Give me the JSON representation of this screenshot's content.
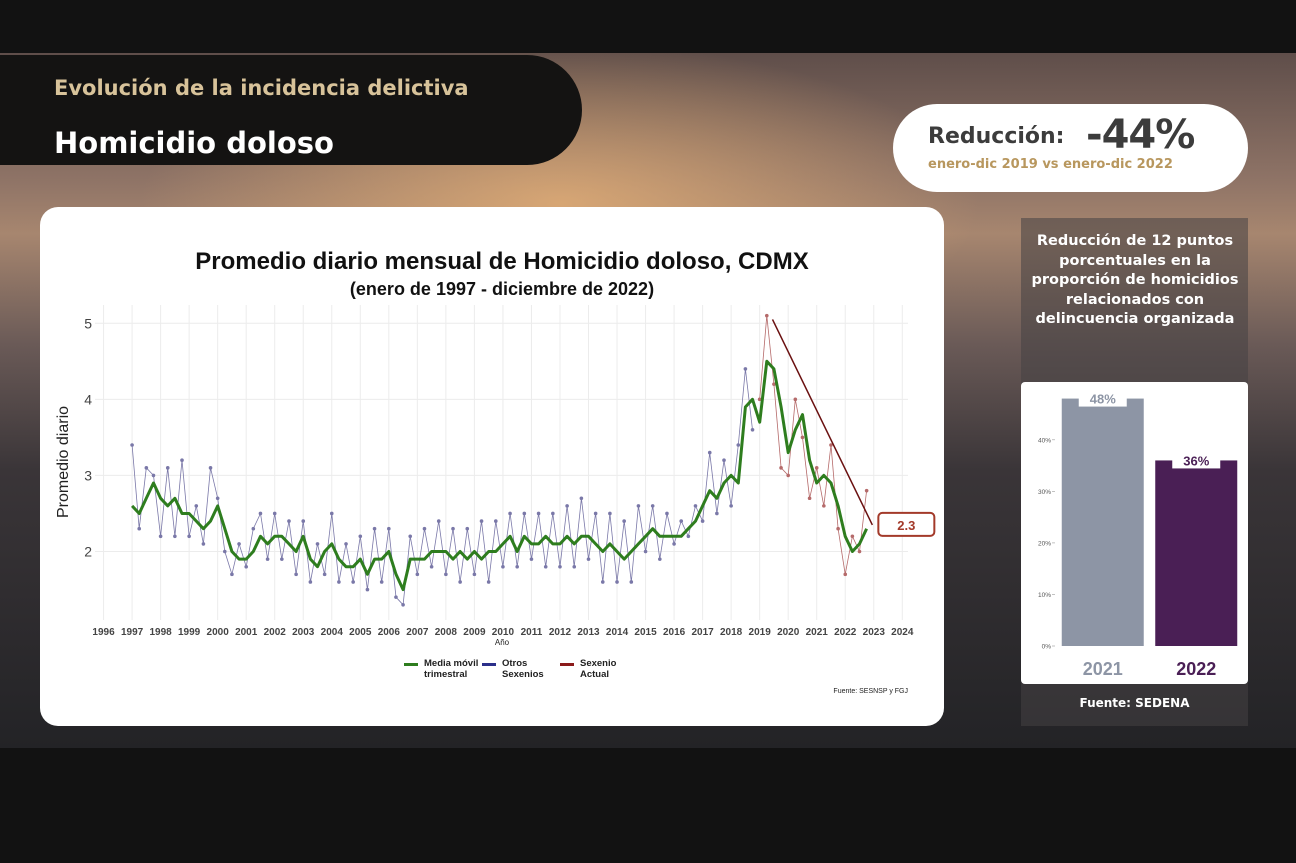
{
  "header": {
    "kicker": "Evolución de la incidencia delictiva",
    "title": "Homicidio doloso"
  },
  "reduction": {
    "label": "Reducción:",
    "value": "-44%",
    "period": "enero-dic 2019 vs enero-dic 2022"
  },
  "side_note": "Reducción de 12 puntos porcentuales en la proporción de homicidios relacionados con delincuencia organizada",
  "chart_data": [
    {
      "type": "line",
      "title": "Promedio diario mensual de Homicidio doloso, CDMX",
      "subtitle": "(enero de 1997 - diciembre de 2022)",
      "y_label": "Promedio diario",
      "x_label": "Año",
      "source": "Fuente: SESNSP y FGJ",
      "annotation": "2.3",
      "xlim": [
        1995.7,
        2024.2
      ],
      "xticks": [
        1996,
        1997,
        1998,
        1999,
        2000,
        2001,
        2002,
        2003,
        2004,
        2005,
        2006,
        2007,
        2008,
        2009,
        2010,
        2011,
        2012,
        2013,
        2014,
        2015,
        2016,
        2017,
        2018,
        2019,
        2020,
        2021,
        2022,
        2023,
        2024
      ],
      "ylim": [
        1.1,
        5.24
      ],
      "yticks": [
        2,
        3,
        4,
        5
      ],
      "grid": true,
      "x": [
        1997,
        1997.25,
        1997.5,
        1997.75,
        1998,
        1998.25,
        1998.5,
        1998.75,
        1999,
        1999.25,
        1999.5,
        1999.75,
        2000,
        2000.25,
        2000.5,
        2000.75,
        2001,
        2001.25,
        2001.5,
        2001.75,
        2002,
        2002.25,
        2002.5,
        2002.75,
        2003,
        2003.25,
        2003.5,
        2003.75,
        2004,
        2004.25,
        2004.5,
        2004.75,
        2005,
        2005.25,
        2005.5,
        2005.75,
        2006,
        2006.25,
        2006.5,
        2006.75,
        2007,
        2007.25,
        2007.5,
        2007.75,
        2008,
        2008.25,
        2008.5,
        2008.75,
        2009,
        2009.25,
        2009.5,
        2009.75,
        2010,
        2010.25,
        2010.5,
        2010.75,
        2011,
        2011.25,
        2011.5,
        2011.75,
        2012,
        2012.25,
        2012.5,
        2012.75,
        2013,
        2013.25,
        2013.5,
        2013.75,
        2014,
        2014.25,
        2014.5,
        2014.75,
        2015,
        2015.25,
        2015.5,
        2015.75,
        2016,
        2016.25,
        2016.5,
        2016.75,
        2017,
        2017.25,
        2017.5,
        2017.75,
        2018,
        2018.25,
        2018.5,
        2018.75,
        2019,
        2019.25,
        2019.5,
        2019.75,
        2020,
        2020.25,
        2020.5,
        2020.75,
        2021,
        2021.25,
        2021.5,
        2021.75,
        2022,
        2022.25,
        2022.5,
        2022.75
      ],
      "series": [
        {
          "name": "Otros Sexenios",
          "color": "#2b2f8a",
          "draw_color": "#7a78a8",
          "values": [
            3.4,
            2.3,
            3.1,
            3.0,
            2.2,
            3.1,
            2.2,
            3.2,
            2.2,
            2.6,
            2.1,
            3.1,
            2.7,
            2.0,
            1.7,
            2.1,
            1.8,
            2.3,
            2.5,
            1.9,
            2.5,
            1.9,
            2.4,
            1.7,
            2.4,
            1.6,
            2.1,
            1.7,
            2.5,
            1.6,
            2.1,
            1.6,
            2.2,
            1.5,
            2.3,
            1.6,
            2.3,
            1.4,
            1.3,
            2.2,
            1.7,
            2.3,
            1.8,
            2.4,
            1.7,
            2.3,
            1.6,
            2.3,
            1.7,
            2.4,
            1.6,
            2.4,
            1.8,
            2.5,
            1.8,
            2.5,
            1.9,
            2.5,
            1.8,
            2.5,
            1.8,
            2.6,
            1.8,
            2.7,
            1.9,
            2.5,
            1.6,
            2.5,
            1.6,
            2.4,
            1.6,
            2.6,
            2.0,
            2.6,
            1.9,
            2.5,
            2.1,
            2.4,
            2.2,
            2.6,
            2.4,
            3.3,
            2.5,
            3.2,
            2.6,
            3.4,
            4.4,
            3.6,
            null,
            null,
            null,
            null,
            null,
            null,
            null,
            null,
            null,
            null,
            null,
            null,
            null,
            null,
            null,
            null
          ]
        },
        {
          "name": "Sexenio Actual",
          "color": "#8b1a1a",
          "draw_color": "#b56a6a",
          "values": [
            null,
            null,
            null,
            null,
            null,
            null,
            null,
            null,
            null,
            null,
            null,
            null,
            null,
            null,
            null,
            null,
            null,
            null,
            null,
            null,
            null,
            null,
            null,
            null,
            null,
            null,
            null,
            null,
            null,
            null,
            null,
            null,
            null,
            null,
            null,
            null,
            null,
            null,
            null,
            null,
            null,
            null,
            null,
            null,
            null,
            null,
            null,
            null,
            null,
            null,
            null,
            null,
            null,
            null,
            null,
            null,
            null,
            null,
            null,
            null,
            null,
            null,
            null,
            null,
            null,
            null,
            null,
            null,
            null,
            null,
            null,
            null,
            null,
            null,
            null,
            null,
            null,
            null,
            null,
            null,
            null,
            null,
            null,
            null,
            null,
            null,
            null,
            null,
            4.0,
            5.1,
            4.2,
            3.1,
            3.0,
            4.0,
            3.5,
            2.7,
            3.1,
            2.6,
            3.4,
            2.3,
            1.7,
            2.2,
            2.0,
            2.8
          ]
        },
        {
          "name": "Media móvil trimestral",
          "color": "#2e7d1e",
          "draw_color": "#2e7d1e",
          "values": [
            2.6,
            2.5,
            2.7,
            2.9,
            2.7,
            2.6,
            2.7,
            2.5,
            2.5,
            2.4,
            2.3,
            2.4,
            2.6,
            2.3,
            2.0,
            1.9,
            1.9,
            2.0,
            2.2,
            2.1,
            2.2,
            2.2,
            2.1,
            2.0,
            2.2,
            1.9,
            1.8,
            2.0,
            2.1,
            1.9,
            1.8,
            1.8,
            1.9,
            1.7,
            1.9,
            1.9,
            2.0,
            1.7,
            1.5,
            1.9,
            1.9,
            1.9,
            2.0,
            2.0,
            2.0,
            1.9,
            2.0,
            1.9,
            2.0,
            1.9,
            2.0,
            2.0,
            2.1,
            2.2,
            2.0,
            2.2,
            2.1,
            2.1,
            2.2,
            2.1,
            2.1,
            2.2,
            2.1,
            2.2,
            2.2,
            2.1,
            2.0,
            2.1,
            2.0,
            1.9,
            2.0,
            2.1,
            2.2,
            2.3,
            2.2,
            2.2,
            2.2,
            2.2,
            2.3,
            2.4,
            2.6,
            2.8,
            2.7,
            2.9,
            3.0,
            2.9,
            3.9,
            4.0,
            3.7,
            4.5,
            4.4,
            3.9,
            3.3,
            3.6,
            3.8,
            3.2,
            2.9,
            3.0,
            2.9,
            2.6,
            2.2,
            2.0,
            2.1,
            2.3
          ]
        }
      ],
      "trend": {
        "x": [
          2019.45,
          2022.95
        ],
        "values": [
          5.05,
          2.35
        ]
      }
    },
    {
      "type": "bar",
      "source": "Fuente: SEDENA",
      "categories": [
        "2021",
        "2022"
      ],
      "values": [
        48,
        36
      ],
      "value_labels": [
        "48%",
        "36%"
      ],
      "colors": [
        "#8d95a5",
        "#4a1f55"
      ],
      "ylim": [
        0,
        48.5
      ],
      "yticks": [
        {
          "value": 0,
          "label": "0%"
        },
        {
          "value": 10,
          "label": "10%"
        },
        {
          "value": 20,
          "label": "20%"
        },
        {
          "value": 30,
          "label": "30%"
        },
        {
          "value": 40,
          "label": "40%"
        }
      ]
    }
  ]
}
